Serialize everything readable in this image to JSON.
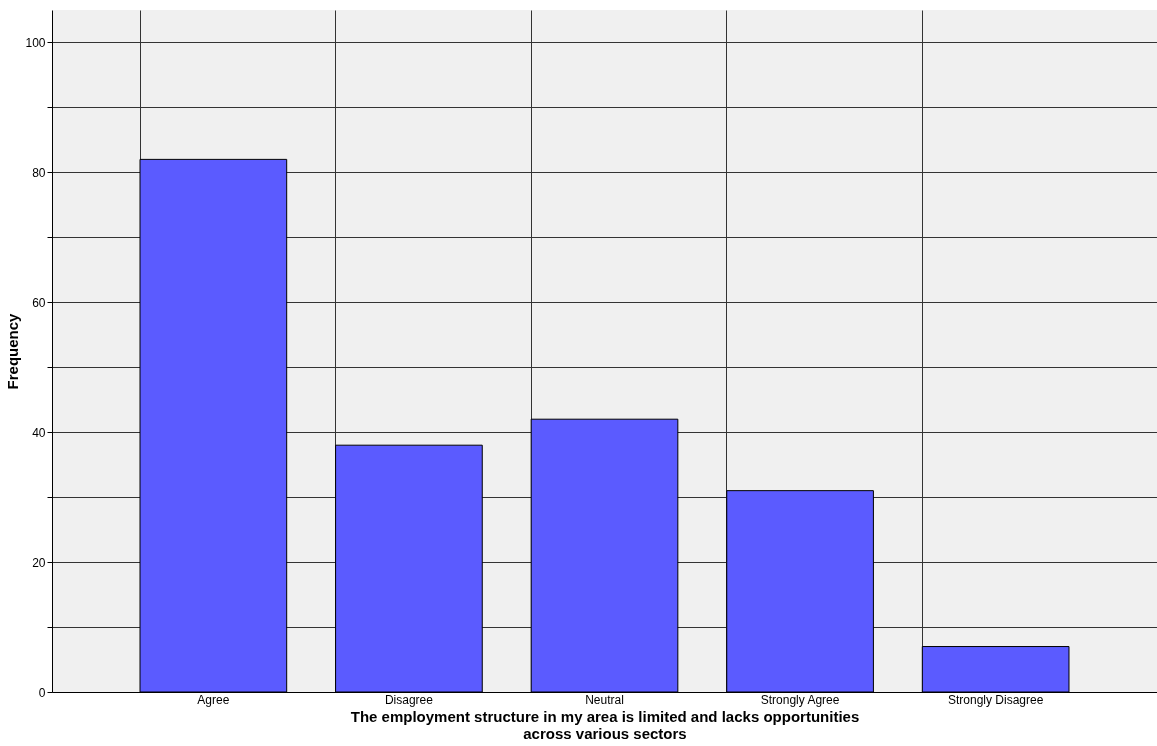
{
  "chart_data": {
    "type": "bar",
    "xlabel": "The employment structure in my area is limited and lacks opportunities across various sectors",
    "ylabel": "Frequency",
    "categories": [
      "Agree",
      "Disagree",
      "Neutral",
      "Strongly Agree",
      "Strongly Disagree"
    ],
    "values": [
      82,
      38,
      42,
      31,
      7
    ],
    "color": "#5b5bff",
    "ylim": [
      0,
      105
    ],
    "yticks": [
      0,
      {
        "value": 10,
        "label": null
      },
      20,
      {
        "value": 30,
        "label": null
      },
      40,
      {
        "value": 50,
        "label": null
      },
      60,
      {
        "value": 70,
        "label": null
      },
      80,
      {
        "value": 90,
        "label": null
      },
      100
    ],
    "grid": true
  }
}
